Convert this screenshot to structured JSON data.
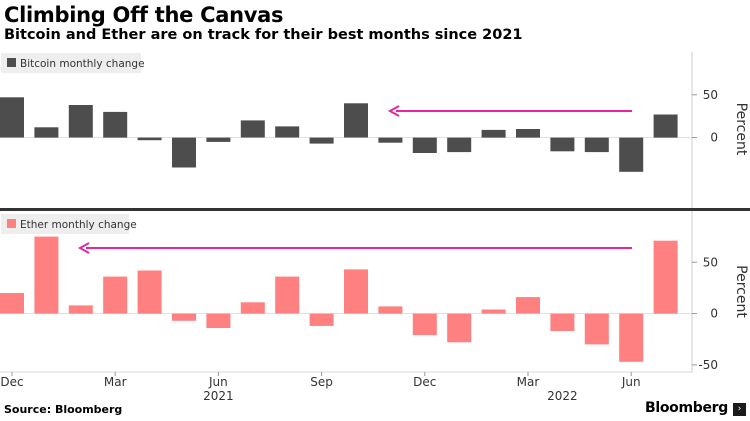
{
  "title": "Climbing Off the Canvas",
  "subtitle": "Bitcoin and Ether are on track for their best months since 2021",
  "source": "Source: Bloomberg",
  "brand": "Bloomberg",
  "brand_icon": "terminal-square-icon",
  "colors": {
    "bitcoin": "#4d4d4d",
    "ether": "#ff8080",
    "arrow": "#e6269e",
    "divider": "#333333",
    "legend_bg": "#eeeeee",
    "axis": "#cccccc"
  },
  "chart_data": [
    {
      "type": "bar",
      "title": "",
      "legend": "Bitcoin monthly change",
      "ylabel": "Percent",
      "ylim": [
        -80,
        100
      ],
      "yticks": [
        50,
        0
      ],
      "categories": [
        "Dec 2020",
        "Jan 2021",
        "Feb 2021",
        "Mar 2021",
        "Apr 2021",
        "May 2021",
        "Jun 2021",
        "Jul 2021",
        "Aug 2021",
        "Sep 2021",
        "Oct 2021",
        "Nov 2021",
        "Dec 2021",
        "Jan 2022",
        "Feb 2022",
        "Mar 2022",
        "Apr 2022",
        "May 2022",
        "Jun 2022",
        "Jul 2022"
      ],
      "series": [
        {
          "name": "Bitcoin monthly change",
          "values": [
            47,
            12,
            38,
            30,
            -3,
            -35,
            -5,
            20,
            13,
            -7,
            40,
            -6,
            -18,
            -17,
            9,
            10,
            -16,
            -17,
            -40,
            27
          ]
        }
      ]
    },
    {
      "type": "bar",
      "title": "",
      "legend": "Ether monthly change",
      "ylabel": "Percent",
      "ylim": [
        -55,
        98
      ],
      "yticks": [
        50,
        0,
        -50
      ],
      "categories": [
        "Dec 2020",
        "Jan 2021",
        "Feb 2021",
        "Mar 2021",
        "Apr 2021",
        "May 2021",
        "Jun 2021",
        "Jul 2021",
        "Aug 2021",
        "Sep 2021",
        "Oct 2021",
        "Nov 2021",
        "Dec 2021",
        "Jan 2022",
        "Feb 2022",
        "Mar 2022",
        "Apr 2022",
        "May 2022",
        "Jun 2022",
        "Jul 2022"
      ],
      "series": [
        {
          "name": "Ether monthly change",
          "values": [
            20,
            75,
            8,
            36,
            42,
            -7,
            -14,
            11,
            36,
            -12,
            43,
            7,
            -21,
            -28,
            4,
            16,
            -17,
            -30,
            -47,
            71
          ]
        }
      ]
    }
  ],
  "x_axis": {
    "ticks": [
      {
        "label": "Dec",
        "index": 0
      },
      {
        "label": "Mar",
        "index": 3
      },
      {
        "label": "Jun",
        "index": 6
      },
      {
        "label": "Sep",
        "index": 9
      },
      {
        "label": "Dec",
        "index": 12
      },
      {
        "label": "Mar",
        "index": 15
      },
      {
        "label": "Jun",
        "index": 18
      }
    ],
    "years": [
      {
        "label": "2021",
        "index": 6
      },
      {
        "label": "2022",
        "index": 16
      }
    ]
  }
}
